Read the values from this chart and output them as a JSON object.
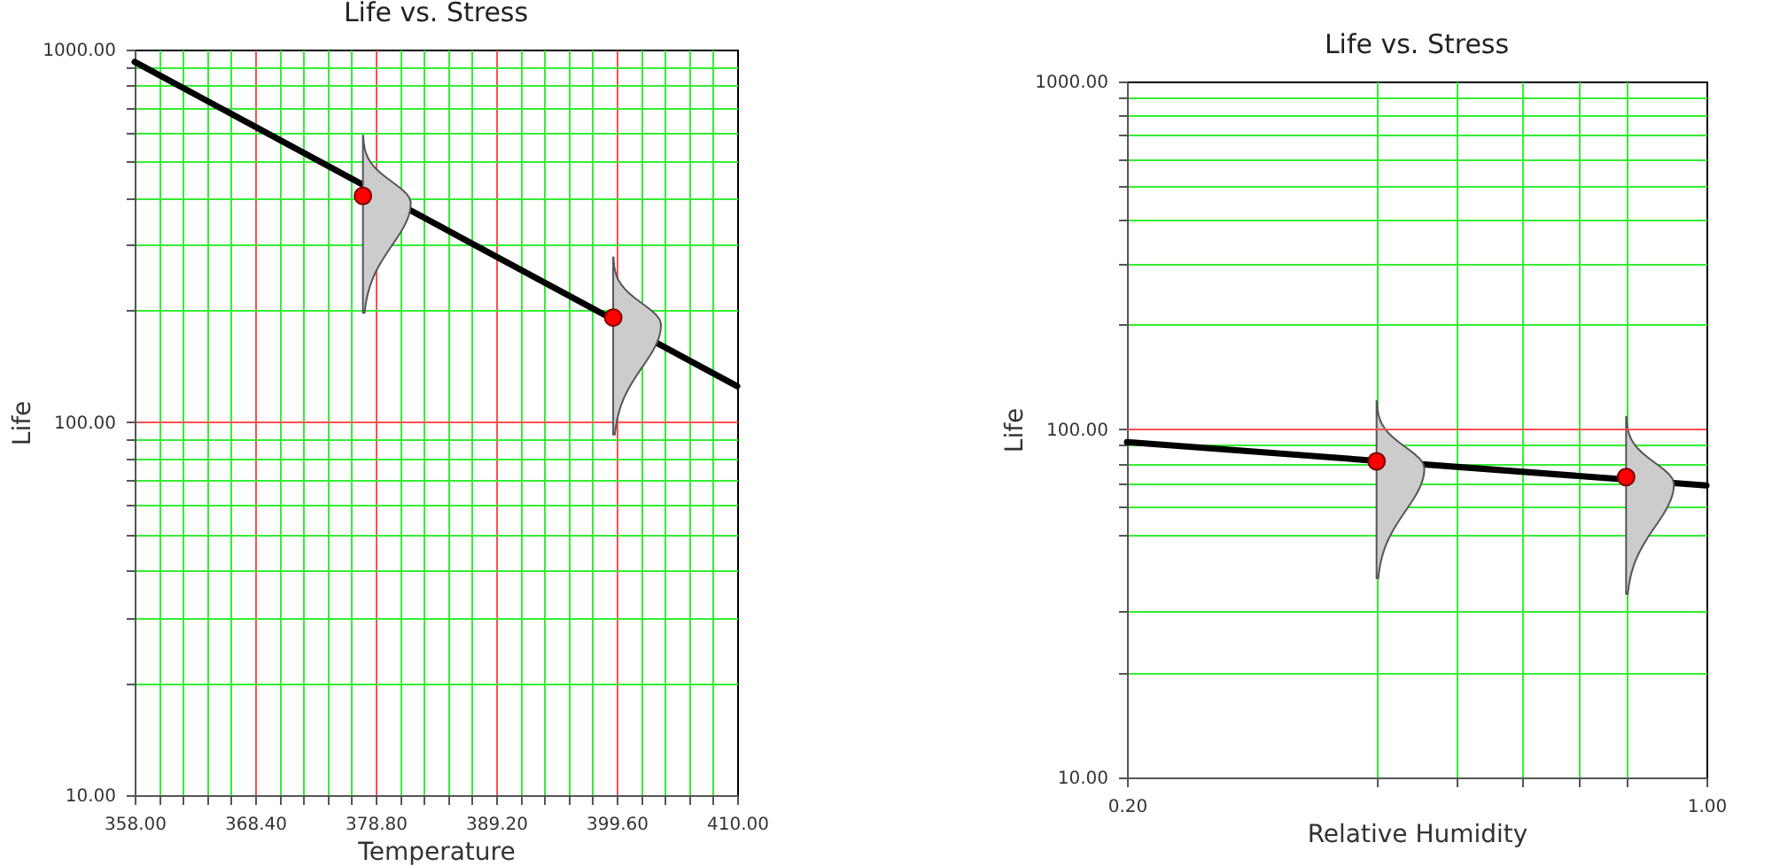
{
  "chart_data": [
    {
      "type": "line",
      "title": "Life vs. Stress",
      "xlabel": "Temperature",
      "ylabel": "Life",
      "log": "y",
      "grid": true,
      "xlim": [
        358,
        410
      ],
      "ylim": [
        10,
        1000
      ],
      "xticks": [
        {
          "value": 358,
          "label": "358.00"
        },
        {
          "value": 360.08,
          "label": null
        },
        {
          "value": 362.16,
          "label": null
        },
        {
          "value": 364.24,
          "label": null
        },
        {
          "value": 366.32,
          "label": null
        },
        {
          "value": 368.4,
          "label": "368.40"
        },
        {
          "value": 370.48,
          "label": null
        },
        {
          "value": 372.56,
          "label": null
        },
        {
          "value": 374.64,
          "label": null
        },
        {
          "value": 376.72,
          "label": null
        },
        {
          "value": 378.8,
          "label": "378.80"
        },
        {
          "value": 380.88,
          "label": null
        },
        {
          "value": 382.96,
          "label": null
        },
        {
          "value": 385.04,
          "label": null
        },
        {
          "value": 387.12,
          "label": null
        },
        {
          "value": 389.2,
          "label": "389.20"
        },
        {
          "value": 391.28,
          "label": null
        },
        {
          "value": 393.36,
          "label": null
        },
        {
          "value": 395.44,
          "label": null
        },
        {
          "value": 397.52,
          "label": null
        },
        {
          "value": 399.6,
          "label": "399.60"
        },
        {
          "value": 401.68,
          "label": null
        },
        {
          "value": 403.76,
          "label": null
        },
        {
          "value": 405.84,
          "label": null
        },
        {
          "value": 407.92,
          "label": null
        },
        {
          "value": 410,
          "label": "410.00"
        }
      ],
      "yticks": [
        {
          "value": 10,
          "label": "10.00"
        },
        {
          "value": 20,
          "label": null
        },
        {
          "value": 30,
          "label": null
        },
        {
          "value": 40,
          "label": null
        },
        {
          "value": 50,
          "label": null
        },
        {
          "value": 60,
          "label": null
        },
        {
          "value": 70,
          "label": null
        },
        {
          "value": 80,
          "label": null
        },
        {
          "value": 90,
          "label": null
        },
        {
          "value": 100,
          "label": "100.00"
        },
        {
          "value": 200,
          "label": null
        },
        {
          "value": 300,
          "label": null
        },
        {
          "value": 400,
          "label": null
        },
        {
          "value": 500,
          "label": null
        },
        {
          "value": 600,
          "label": null
        },
        {
          "value": 700,
          "label": null
        },
        {
          "value": 800,
          "label": null
        },
        {
          "value": 900,
          "label": null
        },
        {
          "value": 1000,
          "label": "1000.00"
        }
      ],
      "series": [
        {
          "type": "line",
          "color": "#000000",
          "x": [
            358,
            410
          ],
          "values": [
            927,
            125
          ]
        },
        {
          "type": "scatter",
          "color": "#ff0000",
          "x": [
            377.7,
            399.3
          ],
          "values": [
            405,
            191
          ]
        }
      ]
    },
    {
      "type": "line",
      "title": "Life vs. Stress",
      "xlabel": "Relative Humidity",
      "ylabel": "Life",
      "log": "xy",
      "grid": true,
      "xlim": [
        0.2,
        1
      ],
      "ylim": [
        10,
        1000
      ],
      "ref_lines": [
        {
          "axis": "y",
          "value": 100,
          "color": "#ff5050"
        }
      ],
      "xticks": [
        {
          "value": 0.2,
          "label": "0.20"
        },
        {
          "value": 0.4,
          "label": null
        },
        {
          "value": 0.5,
          "label": null
        },
        {
          "value": 0.6,
          "label": null
        },
        {
          "value": 0.7,
          "label": null
        },
        {
          "value": 0.8,
          "label": null
        },
        {
          "value": 1,
          "label": "1.00"
        }
      ],
      "yticks": [
        {
          "value": 10,
          "label": "10.00"
        },
        {
          "value": 20,
          "label": null
        },
        {
          "value": 30,
          "label": null
        },
        {
          "value": 50,
          "label": null
        },
        {
          "value": 60,
          "label": null
        },
        {
          "value": 70,
          "label": null
        },
        {
          "value": 80,
          "label": null
        },
        {
          "value": 90,
          "label": null
        },
        {
          "value": 100,
          "label": "100.00"
        },
        {
          "value": 200,
          "label": null
        },
        {
          "value": 300,
          "label": null
        },
        {
          "value": 400,
          "label": null
        },
        {
          "value": 500,
          "label": null
        },
        {
          "value": 600,
          "label": null
        },
        {
          "value": 700,
          "label": null
        },
        {
          "value": 800,
          "label": null
        },
        {
          "value": 900,
          "label": null
        },
        {
          "value": 1000,
          "label": "1000.00"
        }
      ],
      "series": [
        {
          "type": "line",
          "color": "#000000",
          "x": [
            0.2,
            1
          ],
          "values": [
            92,
            69
          ]
        },
        {
          "type": "scatter",
          "color": "#ff0000",
          "x": [
            0.4,
            0.8
          ],
          "values": [
            81,
            73
          ]
        }
      ]
    }
  ]
}
